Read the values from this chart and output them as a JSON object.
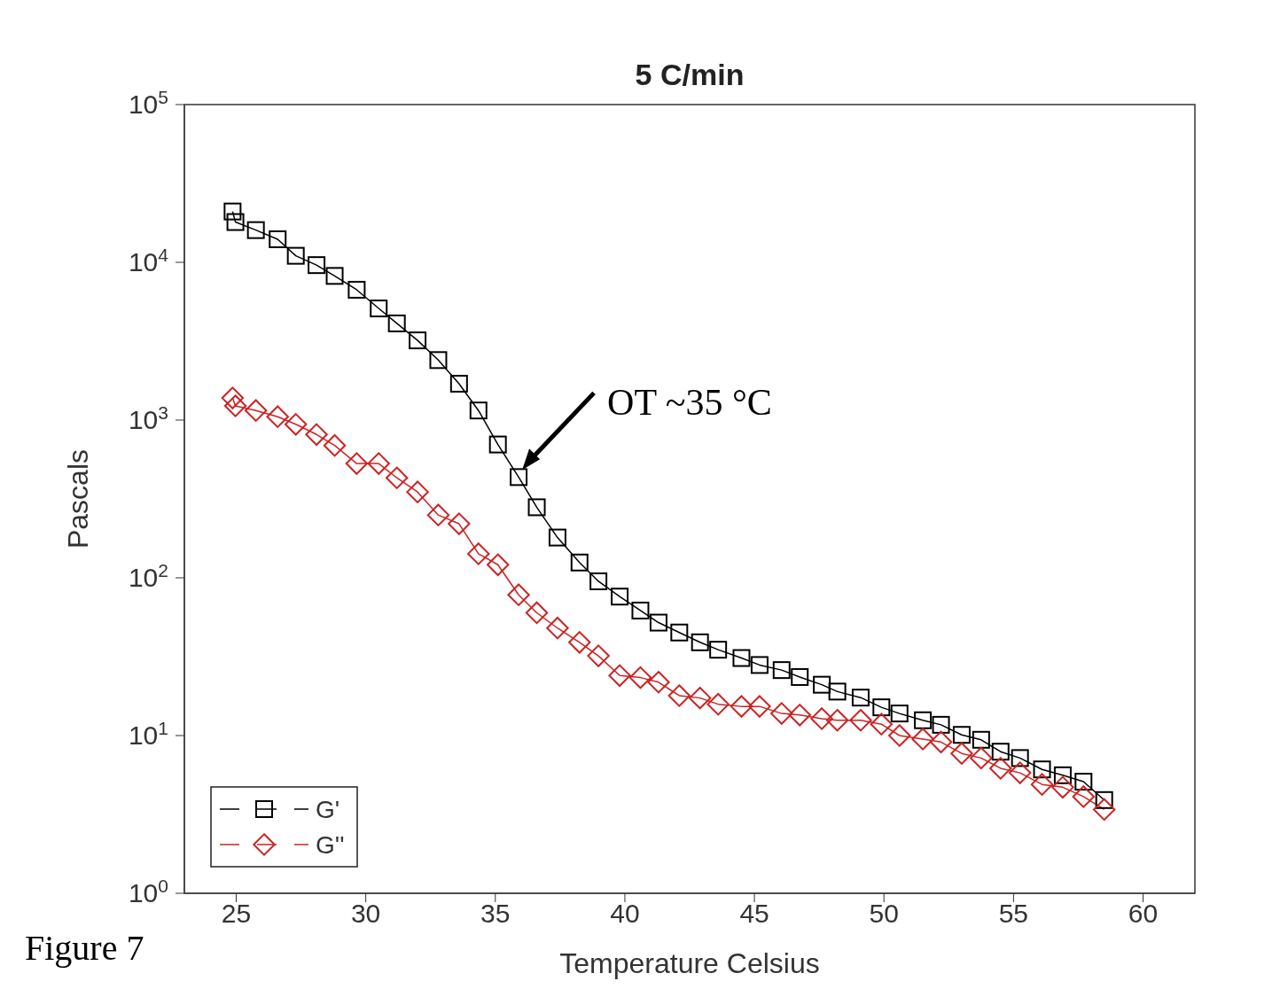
{
  "chart_data": {
    "type": "line",
    "title": "5 C/min",
    "xlabel": "Temperature Celsius",
    "ylabel": "Pascals",
    "log": "y",
    "grid": false,
    "legend": "bottom left",
    "line_style": "solid",
    "xlim": [
      23,
      62
    ],
    "xticks": [
      25,
      30,
      35,
      40,
      45,
      50,
      55,
      60
    ],
    "ylim": [
      1,
      100000
    ],
    "yticks": [
      {
        "value": 1,
        "label": "10$^{0}$"
      },
      {
        "value": 10,
        "label": "10$^{1}$"
      },
      {
        "value": 100,
        "label": "10$^{2}$"
      },
      {
        "value": 1000,
        "label": "10$^{3}$"
      },
      {
        "value": 10000,
        "label": "10$^{4}$"
      },
      {
        "value": 100000,
        "label": "10$^{5}$"
      }
    ],
    "x": [
      24.86,
      24.97,
      25.76,
      26.6,
      27.3,
      28.1,
      28.8,
      29.65,
      30.5,
      31.2,
      32.0,
      32.8,
      33.6,
      34.35,
      35.1,
      35.9,
      36.6,
      37.4,
      38.25,
      38.98,
      39.8,
      40.6,
      41.3,
      42.1,
      42.9,
      43.6,
      44.5,
      45.2,
      46.05,
      46.75,
      47.6,
      48.2,
      49.1,
      49.9,
      50.6,
      51.5,
      52.2,
      53.0,
      53.75,
      54.5,
      55.25,
      56.1,
      56.9,
      57.7,
      58.5
    ],
    "series": [
      {
        "name": "G'",
        "color": "#000000",
        "marker": "square",
        "values": [
          21000,
          18000,
          16000,
          14000,
          11000,
          9600,
          8200,
          6700,
          5100,
          4100,
          3200,
          2400,
          1700,
          1150,
          700,
          435,
          280,
          180,
          125,
          95,
          76,
          62,
          52,
          45,
          39,
          35,
          31,
          28,
          26,
          23.5,
          21,
          19,
          17.4,
          15.1,
          13.8,
          12.5,
          11.7,
          10.1,
          9.4,
          7.9,
          7.2,
          6.1,
          5.6,
          5.1,
          3.9
        ]
      },
      {
        "name": "G''",
        "color": "#cc2222",
        "marker": "diamond",
        "values": [
          1380,
          1230,
          1150,
          1050,
          940,
          810,
          690,
          530,
          530,
          430,
          350,
          250,
          220,
          142,
          121,
          78,
          60,
          48,
          39,
          32,
          24,
          23.3,
          21.8,
          17.9,
          17.3,
          15.8,
          15.3,
          15.3,
          13.8,
          13.5,
          12.8,
          12.5,
          12.5,
          11.8,
          10,
          9.5,
          9.1,
          7.7,
          7.2,
          6.2,
          5.8,
          4.9,
          4.7,
          4.1,
          3.4
        ]
      }
    ],
    "annotations": [
      {
        "text": "OT ~35 °C",
        "x": 35.9,
        "y": 435
      },
      "Figure 7"
    ]
  }
}
